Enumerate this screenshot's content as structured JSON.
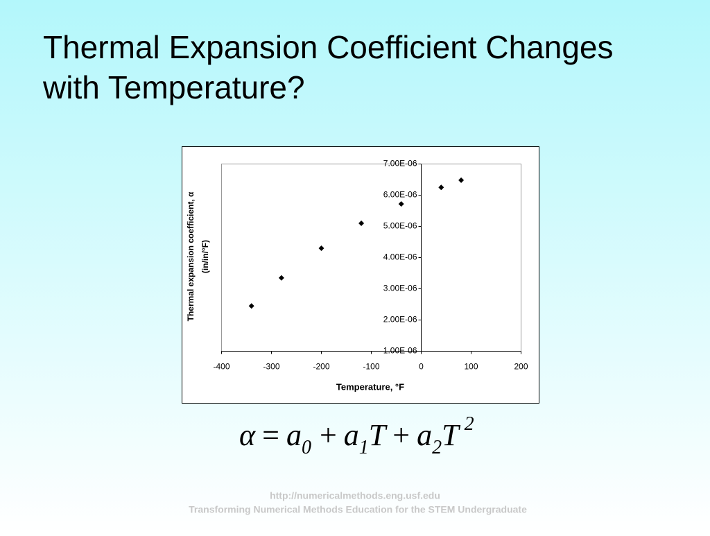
{
  "slide": {
    "title": [
      "Thermal Expansion Coefficient Changes",
      "with Temperature?"
    ],
    "equation": [
      "α",
      "=",
      "a",
      "0",
      "+",
      "a",
      "1",
      "T",
      "+",
      "a",
      "2",
      "T",
      "2"
    ],
    "footer": [
      "http://numericalmethods.eng.usf.edu",
      "Transforming Numerical Methods Education for the STEM Undergraduate"
    ]
  },
  "chart_data": {
    "type": "scatter",
    "x_label": "Temperature, °F",
    "y_label": [
      "Thermal expansion coefficient, α",
      "(in/in/°F)"
    ],
    "x": [
      -340,
      -280,
      -200,
      -120,
      -40,
      40,
      80
    ],
    "series": [
      {
        "color": "#000000",
        "values": [
          2.45e-06,
          3.35e-06,
          4.3e-06,
          5.1e-06,
          5.72e-06,
          6.25e-06,
          6.48e-06
        ]
      }
    ],
    "xlim": [
      -400,
      200
    ],
    "xticks": [
      -400,
      -300,
      -200,
      -100,
      0,
      100,
      200
    ],
    "ylim": [
      1e-06,
      7e-06
    ],
    "yticks": [
      {
        "value": 1e-06,
        "label": "1.00E-06"
      },
      {
        "value": 2e-06,
        "label": "2.00E-06"
      },
      {
        "value": 3e-06,
        "label": "3.00E-06"
      },
      {
        "value": 4e-06,
        "label": "4.00E-06"
      },
      {
        "value": 5e-06,
        "label": "5.00E-06"
      },
      {
        "value": 6e-06,
        "label": "6.00E-06"
      },
      {
        "value": 7e-06,
        "label": "7.00E-06"
      }
    ],
    "grid": false
  }
}
